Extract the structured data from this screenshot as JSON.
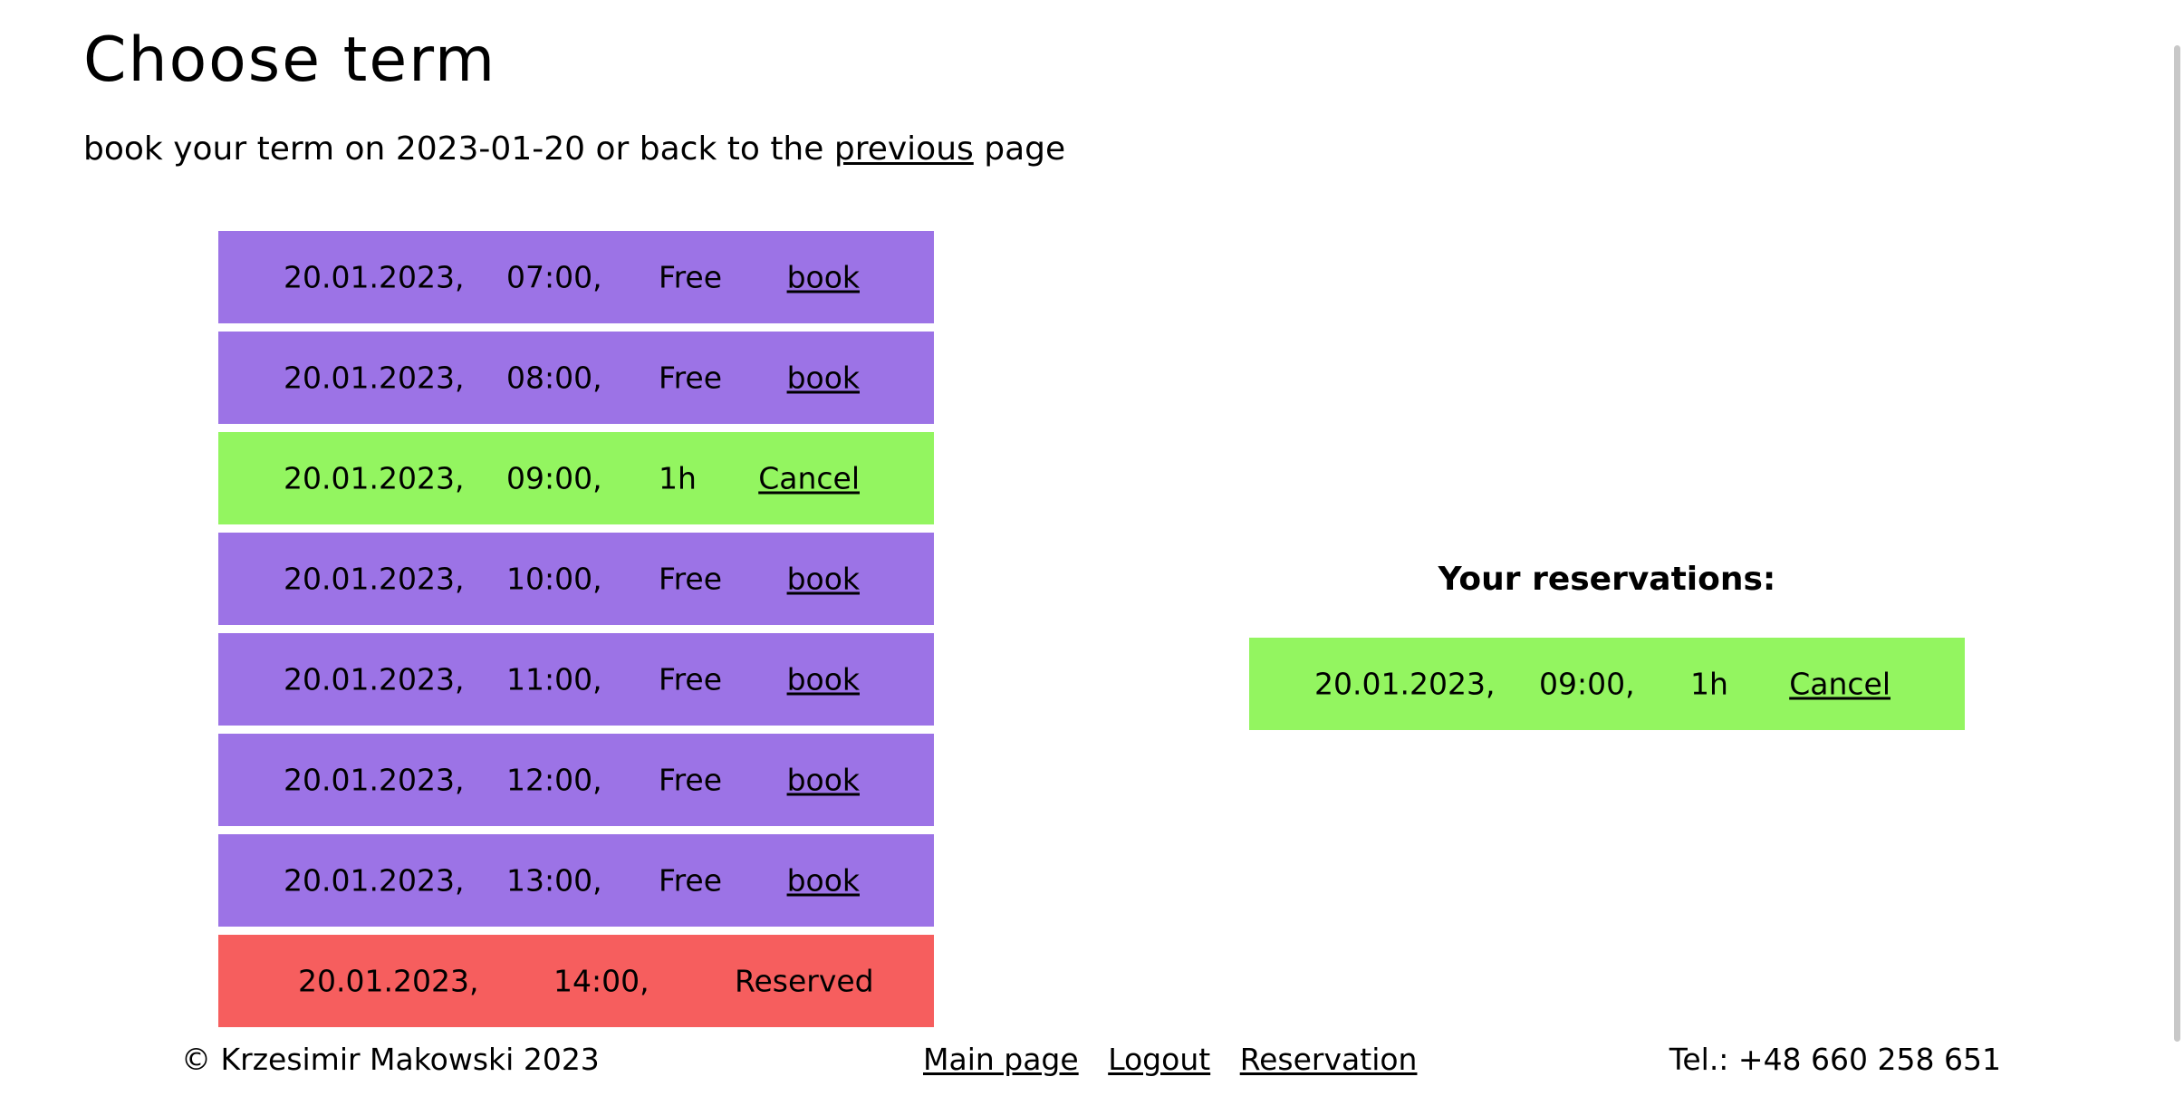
{
  "header": {
    "title": "Choose term",
    "subtitle_before": "book your term on 2023-01-20 or back to the",
    "previous_link": "previous",
    "subtitle_after": "page"
  },
  "slots": [
    {
      "date": "20.01.2023,",
      "time": "07:00,",
      "status": "Free",
      "action": "book",
      "state": "free"
    },
    {
      "date": "20.01.2023,",
      "time": "08:00,",
      "status": "Free",
      "action": "book",
      "state": "free"
    },
    {
      "date": "20.01.2023,",
      "time": "09:00,",
      "status": "1h",
      "action": "Cancel",
      "state": "mine"
    },
    {
      "date": "20.01.2023,",
      "time": "10:00,",
      "status": "Free",
      "action": "book",
      "state": "free"
    },
    {
      "date": "20.01.2023,",
      "time": "11:00,",
      "status": "Free",
      "action": "book",
      "state": "free"
    },
    {
      "date": "20.01.2023,",
      "time": "12:00,",
      "status": "Free",
      "action": "book",
      "state": "free"
    },
    {
      "date": "20.01.2023,",
      "time": "13:00,",
      "status": "Free",
      "action": "book",
      "state": "free"
    },
    {
      "date": "20.01.2023,",
      "time": "14:00,",
      "status": "Reserved",
      "action": "",
      "state": "taken"
    }
  ],
  "reservations": {
    "title": "Your reservations:",
    "items": [
      {
        "date": "20.01.2023,",
        "time": "09:00,",
        "duration": "1h",
        "action": "Cancel"
      }
    ]
  },
  "colors": {
    "free": "#9c73e6",
    "mine": "#93f560",
    "taken": "#f65e5e"
  },
  "footer": {
    "copyright": "© Krzesimir Makowski 2023",
    "links": [
      "Main page",
      "Logout",
      "Reservation"
    ],
    "phone": "Tel.: +48 660 258 651"
  }
}
